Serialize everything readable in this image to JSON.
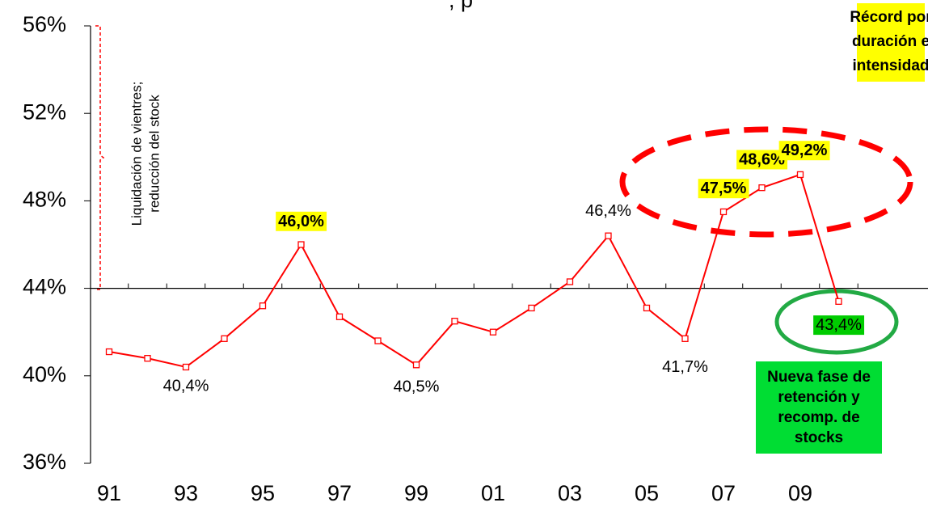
{
  "chart_data": {
    "type": "line",
    "title": ", p",
    "categories": [
      "91",
      null,
      "93",
      null,
      "95",
      null,
      "97",
      null,
      "99",
      null,
      "01",
      null,
      "03",
      null,
      "05",
      null,
      "07",
      null,
      "09",
      null
    ],
    "series": [
      {
        "name": null,
        "color": "#ff0000",
        "values": [
          41.1,
          40.8,
          40.4,
          41.7,
          43.2,
          46.0,
          42.7,
          41.6,
          40.5,
          42.5,
          42.0,
          43.1,
          44.3,
          46.4,
          43.1,
          41.7,
          47.5,
          48.6,
          49.2,
          43.4
        ],
        "value_labels": [
          null,
          null,
          "40,4%",
          null,
          null,
          "46,0%",
          null,
          null,
          "40,5%",
          null,
          null,
          null,
          null,
          "46,4%",
          null,
          "41,7%",
          "47,5%",
          "48,6%",
          "49,2%",
          "43,4%"
        ],
        "label_highlights": [
          null,
          null,
          null,
          null,
          null,
          "#ffff00",
          null,
          null,
          null,
          null,
          null,
          null,
          null,
          null,
          null,
          null,
          "#ffff00",
          "#ffff00",
          "#ffff00",
          "#00cc00"
        ]
      }
    ],
    "ylim": [
      36,
      56
    ],
    "yticks": [
      {
        "value": 36,
        "label": "36%"
      },
      {
        "value": 40,
        "label": "40%"
      },
      {
        "value": 44,
        "label": "44%"
      },
      {
        "value": 48,
        "label": "48%"
      },
      {
        "value": 52,
        "label": "52%"
      },
      {
        "value": 56,
        "label": "56%"
      }
    ],
    "x_axis_crossing": 44,
    "annotations": {
      "side_note": [
        "Liquidación de vientres;",
        "reducción del stock"
      ],
      "record": [
        "Récord por",
        "duración e",
        "intensidad"
      ],
      "new_phase": [
        "Nueva fase de",
        "retención y",
        "recomp. de",
        "stocks"
      ]
    }
  }
}
